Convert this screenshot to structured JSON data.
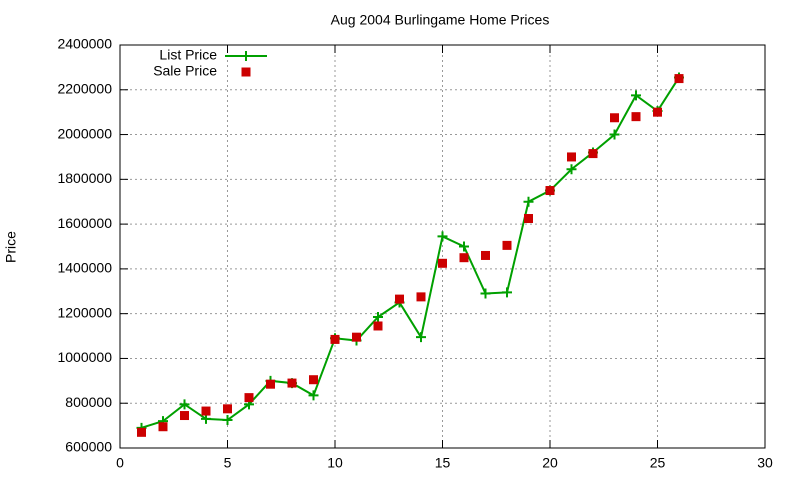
{
  "chart_data": {
    "type": "line",
    "title": "Aug 2004 Burlingame Home Prices",
    "y_label": "Price",
    "x": [
      1,
      2,
      3,
      4,
      5,
      6,
      7,
      8,
      9,
      10,
      11,
      12,
      13,
      14,
      15,
      16,
      17,
      18,
      19,
      20,
      21,
      22,
      23,
      24,
      25,
      26
    ],
    "series": [
      {
        "name": "List Price",
        "color": "#00a000",
        "mode": "lines+points",
        "marker": "plus",
        "values": [
          690000,
          720000,
          795000,
          730000,
          725000,
          795000,
          900000,
          890000,
          835000,
          1090000,
          1080000,
          1185000,
          1250000,
          1095000,
          1545000,
          1500000,
          1290000,
          1295000,
          1700000,
          1750000,
          1845000,
          1920000,
          2000000,
          2175000,
          2105000,
          2255000
        ]
      },
      {
        "name": "Sale Price",
        "color": "#cc0000",
        "mode": "points",
        "marker": "square",
        "values": [
          670000,
          695000,
          745000,
          765000,
          775000,
          825000,
          885000,
          890000,
          905000,
          1085000,
          1095000,
          1145000,
          1265000,
          1275000,
          1425000,
          1450000,
          1460000,
          1505000,
          1625000,
          1750000,
          1900000,
          1915000,
          2075000,
          2080000,
          2100000,
          2250000
        ]
      }
    ],
    "xlim": [
      0,
      30
    ],
    "xticks": [
      0,
      5,
      10,
      15,
      20,
      25,
      30
    ],
    "ylim": [
      600000,
      2400000
    ],
    "yticks": [
      600000,
      800000,
      1000000,
      1200000,
      1400000,
      1600000,
      1800000,
      2000000,
      2200000,
      2400000
    ],
    "grid": true,
    "legend": "top-left"
  }
}
